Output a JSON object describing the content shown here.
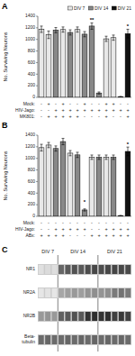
{
  "chart_data": [
    {
      "type": "bar",
      "title": "A",
      "categories": [
        null,
        null,
        null,
        null,
        null,
        null,
        null,
        null,
        null,
        null,
        null,
        null,
        null
      ],
      "series": [
        {
          "name": "DIV 7",
          "color": "#e8e8e8",
          "values": [
            1175,
            1080,
            null,
            1170,
            null,
            1170,
            null,
            null,
            null,
            1010,
            1030,
            null,
            null
          ],
          "errors": [
            55,
            65,
            null,
            45,
            null,
            45,
            null,
            null,
            null,
            45,
            45,
            null,
            null
          ]
        },
        {
          "name": "DIV 14",
          "color": "#888888",
          "values": [
            null,
            null,
            1160,
            null,
            1120,
            null,
            1090,
            1230,
            75,
            null,
            null,
            null,
            null
          ],
          "errors": [
            null,
            null,
            45,
            null,
            45,
            null,
            45,
            55,
            18,
            null,
            null,
            null,
            null
          ]
        },
        {
          "name": "DIV 21",
          "color": "#111111",
          "values": [
            null,
            null,
            null,
            null,
            null,
            null,
            null,
            null,
            null,
            null,
            null,
            12,
            1100
          ],
          "errors": [
            null,
            null,
            null,
            null,
            null,
            null,
            null,
            null,
            null,
            null,
            null,
            4,
            75
          ]
        }
      ],
      "ylabel": "No. Surviving Neurons",
      "ylim": [
        0,
        1400
      ],
      "yticks": [
        0,
        200,
        400,
        600,
        800,
        1000,
        1200,
        1400
      ],
      "legend": "upper right",
      "annotations": [
        {
          "text": "**",
          "x": 7,
          "y": 1300
        },
        {
          "text": "*",
          "x": 12,
          "y": 1190
        }
      ],
      "condition_rows": [
        {
          "name": "Mock:",
          "values": [
            "-",
            "+",
            "-",
            "+",
            "-",
            "-",
            "+",
            "-",
            "-",
            "+",
            "+",
            "-",
            "-"
          ]
        },
        {
          "name": "HIV-Jago:",
          "values": [
            "-",
            "-",
            "+",
            "+",
            "+",
            "+",
            "+",
            "+",
            "+",
            "+",
            "+",
            "+",
            "+"
          ]
        },
        {
          "name": "MK801:",
          "values": [
            "-",
            "+",
            "+",
            "+",
            "+",
            "+",
            "-",
            "-",
            "-",
            "+",
            "-",
            "-",
            "+"
          ]
        }
      ]
    },
    {
      "type": "bar",
      "title": "B",
      "categories": [
        null,
        null,
        null,
        null,
        null,
        null,
        null,
        null,
        null,
        null,
        null,
        null,
        null
      ],
      "series": [
        {
          "color": "#e8e8e8",
          "values": [
            1185,
            1230,
            null,
            null,
            1090,
            null,
            null,
            1020,
            null,
            1020,
            null,
            null,
            null
          ],
          "errors": [
            58,
            45,
            null,
            null,
            45,
            null,
            null,
            38,
            null,
            38,
            null,
            null,
            null
          ]
        },
        {
          "color": "#888888",
          "values": [
            null,
            null,
            1170,
            1290,
            null,
            1060,
            110,
            null,
            1020,
            null,
            1020,
            null,
            null
          ],
          "errors": [
            null,
            null,
            45,
            55,
            null,
            45,
            18,
            null,
            38,
            null,
            38,
            null,
            null
          ]
        },
        {
          "color": "#111111",
          "values": [
            null,
            null,
            null,
            null,
            null,
            null,
            null,
            null,
            null,
            null,
            null,
            12,
            1120
          ],
          "errors": [
            null,
            null,
            null,
            null,
            null,
            null,
            null,
            null,
            null,
            null,
            null,
            4,
            75
          ]
        }
      ],
      "ylabel": "No. Surviving Neurons",
      "ylim": [
        0,
        1400
      ],
      "yticks": [
        0,
        200,
        400,
        600,
        800,
        1000,
        1200,
        1400
      ],
      "annotations": [
        {
          "text": "*",
          "x": 6,
          "y": 210
        },
        {
          "text": "*",
          "x": 12,
          "y": 1210
        }
      ],
      "condition_rows": [
        {
          "name": "Mock:",
          "values": [
            "-",
            "-",
            "-",
            "-",
            "-",
            "-",
            "-",
            "-",
            "-",
            "-",
            "-",
            "-",
            "-"
          ]
        },
        {
          "name": "HIV-Jago:",
          "values": [
            "-",
            "-",
            "+",
            "+",
            "+",
            "+",
            "+",
            "-",
            "-",
            "+",
            "+",
            "+",
            "+"
          ]
        },
        {
          "name": "ABx:",
          "values": [
            "+",
            "+",
            "+",
            "+",
            "-",
            "-",
            "-",
            "+",
            "+",
            "+",
            "+",
            "+",
            "+"
          ]
        }
      ]
    },
    {
      "type": "heatmap",
      "title": "C",
      "rows": [
        "NR1",
        "NR2A",
        "NR2B",
        "Beta-\ntubulin"
      ],
      "column_groups": [
        "DIV 7",
        "DIV 7",
        "DIV 7",
        "DIV 14",
        "DIV 14",
        "DIV 14",
        "DIV 14",
        "DIV 14",
        "DIV 14",
        "DIV 21",
        "DIV 21",
        "DIV 21",
        "DIV 21",
        "DIV 21"
      ],
      "cell_range": [
        0,
        1
      ],
      "cells": [
        [
          0.12,
          0.14,
          0.13,
          0.6,
          0.65,
          0.68,
          0.65,
          0.7,
          0.72,
          0.7,
          0.72,
          0.73,
          0.72,
          0.71
        ],
        [
          0.1,
          0.11,
          0.1,
          0.35,
          0.38,
          0.4,
          0.38,
          0.42,
          0.44,
          0.42,
          0.44,
          0.52,
          0.55,
          0.52
        ],
        [
          0.4,
          0.42,
          0.4,
          0.62,
          0.65,
          0.68,
          0.65,
          0.8,
          0.82,
          0.8,
          0.82,
          0.75,
          0.78,
          0.75
        ],
        [
          0.58,
          0.6,
          0.58,
          0.58,
          0.6,
          0.58,
          0.6,
          0.58,
          0.6,
          0.58,
          0.6,
          0.58,
          0.6,
          0.58
        ]
      ]
    }
  ]
}
